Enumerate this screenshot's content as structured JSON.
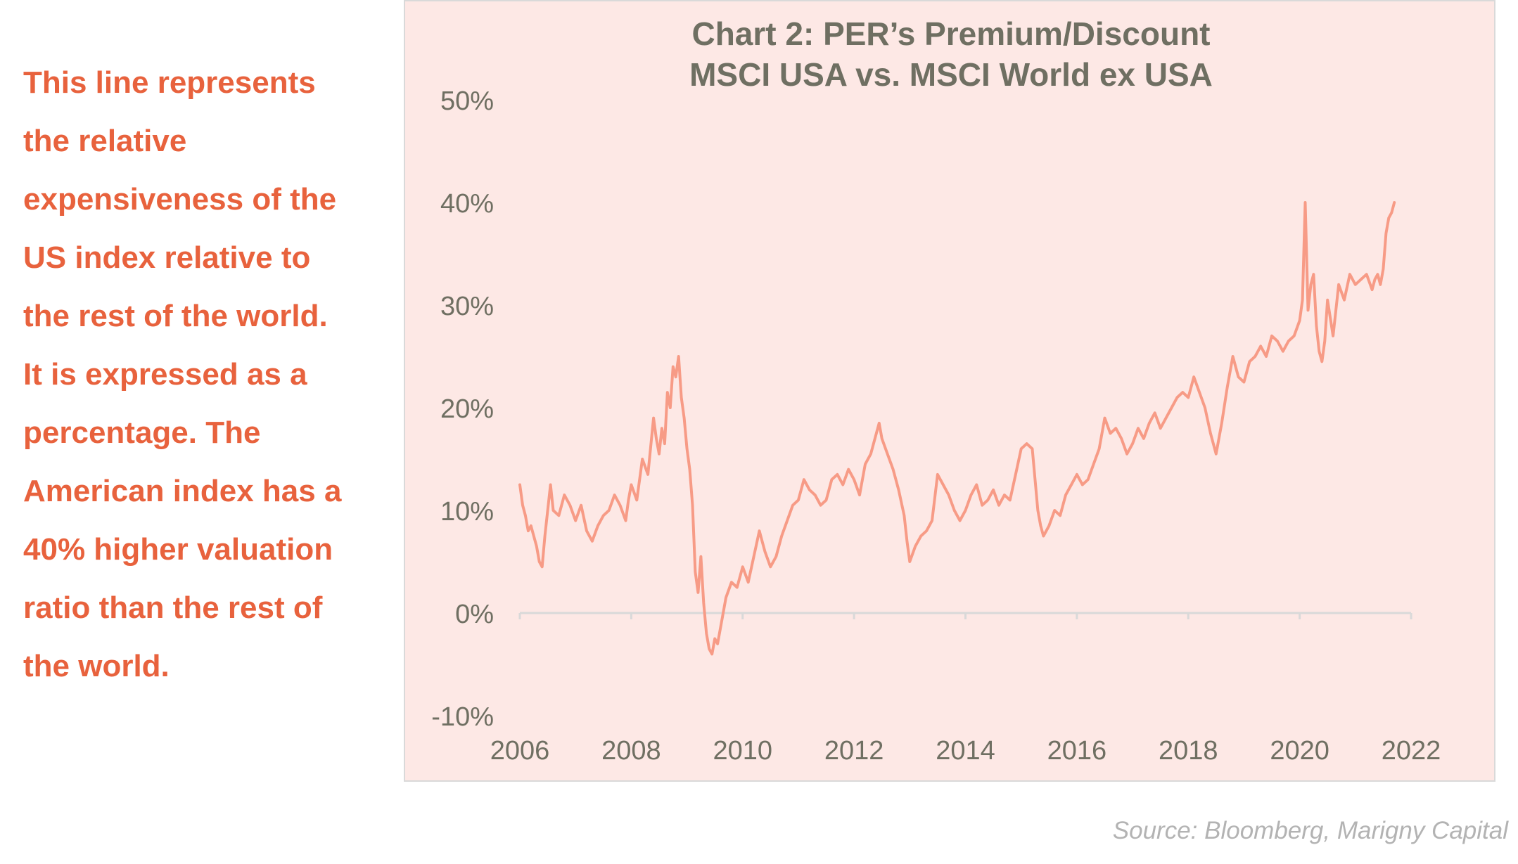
{
  "annotation": {
    "lines": [
      "This line represents",
      "the relative",
      "expensiveness of the",
      "US index relative to",
      "the rest of the world.",
      "It is expressed as a",
      "percentage. The",
      "American index has a",
      "40% higher valuation",
      "ratio than the rest of",
      "the world."
    ],
    "color": "#e8623d"
  },
  "source": "Source: Bloomberg, Marigny Capital",
  "colors": {
    "panel_background": "#fde8e5",
    "line": "#f79b86",
    "title": "#6f6f62",
    "tick_text": "#6f6f62",
    "axis": "#d9d9d9"
  },
  "chart_data": {
    "type": "line",
    "title_lines": [
      "Chart 2: PER’s Premium/Discount",
      "MSCI USA vs. MSCI World ex USA"
    ],
    "xlabel": "",
    "ylabel": "",
    "xlim": [
      2006,
      2022
    ],
    "ylim": [
      -10,
      50
    ],
    "xticks": [
      2006,
      2008,
      2010,
      2012,
      2014,
      2016,
      2018,
      2020,
      2022
    ],
    "xtick_labels": [
      "2006",
      "2008",
      "2010",
      "2012",
      "2014",
      "2016",
      "2018",
      "2020",
      "2022"
    ],
    "yticks": [
      -10,
      0,
      10,
      20,
      30,
      40,
      50
    ],
    "ytick_labels": [
      "-10%",
      "0%",
      "10%",
      "20%",
      "30%",
      "40%",
      "50%"
    ],
    "grid": false,
    "legend": "none",
    "series": [
      {
        "color": "#f79b86",
        "x": [
          2006.0,
          2006.05,
          2006.1,
          2006.15,
          2006.2,
          2006.25,
          2006.3,
          2006.35,
          2006.4,
          2006.45,
          2006.5,
          2006.55,
          2006.6,
          2006.7,
          2006.8,
          2006.9,
          2007.0,
          2007.1,
          2007.2,
          2007.3,
          2007.4,
          2007.5,
          2007.6,
          2007.7,
          2007.8,
          2007.9,
          2007.95,
          2008.0,
          2008.1,
          2008.2,
          2008.3,
          2008.4,
          2008.45,
          2008.5,
          2008.55,
          2008.6,
          2008.65,
          2008.7,
          2008.75,
          2008.8,
          2008.85,
          2008.9,
          2008.95,
          2009.0,
          2009.05,
          2009.1,
          2009.15,
          2009.2,
          2009.25,
          2009.3,
          2009.35,
          2009.4,
          2009.45,
          2009.5,
          2009.55,
          2009.6,
          2009.7,
          2009.8,
          2009.9,
          2010.0,
          2010.1,
          2010.2,
          2010.3,
          2010.4,
          2010.5,
          2010.6,
          2010.7,
          2010.8,
          2010.9,
          2011.0,
          2011.1,
          2011.2,
          2011.3,
          2011.4,
          2011.5,
          2011.6,
          2011.7,
          2011.8,
          2011.9,
          2012.0,
          2012.1,
          2012.2,
          2012.3,
          2012.4,
          2012.45,
          2012.5,
          2012.6,
          2012.7,
          2012.8,
          2012.9,
          2012.95,
          2013.0,
          2013.1,
          2013.2,
          2013.3,
          2013.4,
          2013.5,
          2013.6,
          2013.7,
          2013.8,
          2013.9,
          2014.0,
          2014.1,
          2014.2,
          2014.3,
          2014.4,
          2014.5,
          2014.6,
          2014.7,
          2014.8,
          2014.9,
          2015.0,
          2015.1,
          2015.2,
          2015.3,
          2015.35,
          2015.4,
          2015.5,
          2015.6,
          2015.7,
          2015.8,
          2015.9,
          2016.0,
          2016.1,
          2016.2,
          2016.3,
          2016.4,
          2016.5,
          2016.6,
          2016.7,
          2016.8,
          2016.9,
          2017.0,
          2017.1,
          2017.2,
          2017.3,
          2017.4,
          2017.5,
          2017.6,
          2017.7,
          2017.8,
          2017.9,
          2018.0,
          2018.1,
          2018.2,
          2018.3,
          2018.4,
          2018.5,
          2018.6,
          2018.7,
          2018.8,
          2018.9,
          2019.0,
          2019.1,
          2019.2,
          2019.3,
          2019.4,
          2019.5,
          2019.6,
          2019.7,
          2019.8,
          2019.9,
          2020.0,
          2020.05,
          2020.1,
          2020.15,
          2020.2,
          2020.25,
          2020.3,
          2020.35,
          2020.4,
          2020.45,
          2020.5,
          2020.6,
          2020.7,
          2020.8,
          2020.9,
          2021.0,
          2021.1,
          2021.2,
          2021.3,
          2021.35,
          2021.4,
          2021.45,
          2021.5,
          2021.55,
          2021.6,
          2021.65,
          2021.7
        ],
        "y": [
          12.5,
          10.5,
          9.5,
          8.0,
          8.5,
          7.5,
          6.5,
          5.0,
          4.5,
          7.5,
          10.0,
          12.5,
          10.0,
          9.5,
          11.5,
          10.5,
          9.0,
          10.5,
          8.0,
          7.0,
          8.5,
          9.5,
          10.0,
          11.5,
          10.5,
          9.0,
          11.0,
          12.5,
          11.0,
          15.0,
          13.5,
          19.0,
          17.0,
          15.5,
          18.0,
          16.5,
          21.5,
          20.0,
          24.0,
          23.0,
          25.0,
          21.0,
          19.0,
          16.0,
          14.0,
          10.5,
          4.0,
          2.0,
          5.5,
          1.0,
          -2.0,
          -3.5,
          -4.0,
          -2.5,
          -3.0,
          -1.5,
          1.5,
          3.0,
          2.5,
          4.5,
          3.0,
          5.5,
          8.0,
          6.0,
          4.5,
          5.5,
          7.5,
          9.0,
          10.5,
          11.0,
          13.0,
          12.0,
          11.5,
          10.5,
          11.0,
          13.0,
          13.5,
          12.5,
          14.0,
          13.0,
          11.5,
          14.5,
          15.5,
          17.5,
          18.5,
          17.0,
          15.5,
          14.0,
          12.0,
          9.5,
          7.0,
          5.0,
          6.5,
          7.5,
          8.0,
          9.0,
          13.5,
          12.5,
          11.5,
          10.0,
          9.0,
          10.0,
          11.5,
          12.5,
          10.5,
          11.0,
          12.0,
          10.5,
          11.5,
          11.0,
          13.5,
          16.0,
          16.5,
          16.0,
          10.0,
          8.5,
          7.5,
          8.5,
          10.0,
          9.5,
          11.5,
          12.5,
          13.5,
          12.5,
          13.0,
          14.5,
          16.0,
          19.0,
          17.5,
          18.0,
          17.0,
          15.5,
          16.5,
          18.0,
          17.0,
          18.5,
          19.5,
          18.0,
          19.0,
          20.0,
          21.0,
          21.5,
          21.0,
          23.0,
          21.5,
          20.0,
          17.5,
          15.5,
          18.5,
          22.0,
          25.0,
          23.0,
          22.5,
          24.5,
          25.0,
          26.0,
          25.0,
          27.0,
          26.5,
          25.5,
          26.5,
          27.0,
          28.5,
          30.5,
          40.0,
          29.5,
          32.0,
          33.0,
          28.0,
          25.5,
          24.5,
          26.5,
          30.5,
          27.0,
          32.0,
          30.5,
          33.0,
          32.0,
          32.5,
          33.0,
          31.5,
          32.5,
          33.0,
          32.0,
          33.5,
          37.0,
          38.5,
          39.0,
          40.0
        ]
      }
    ]
  }
}
